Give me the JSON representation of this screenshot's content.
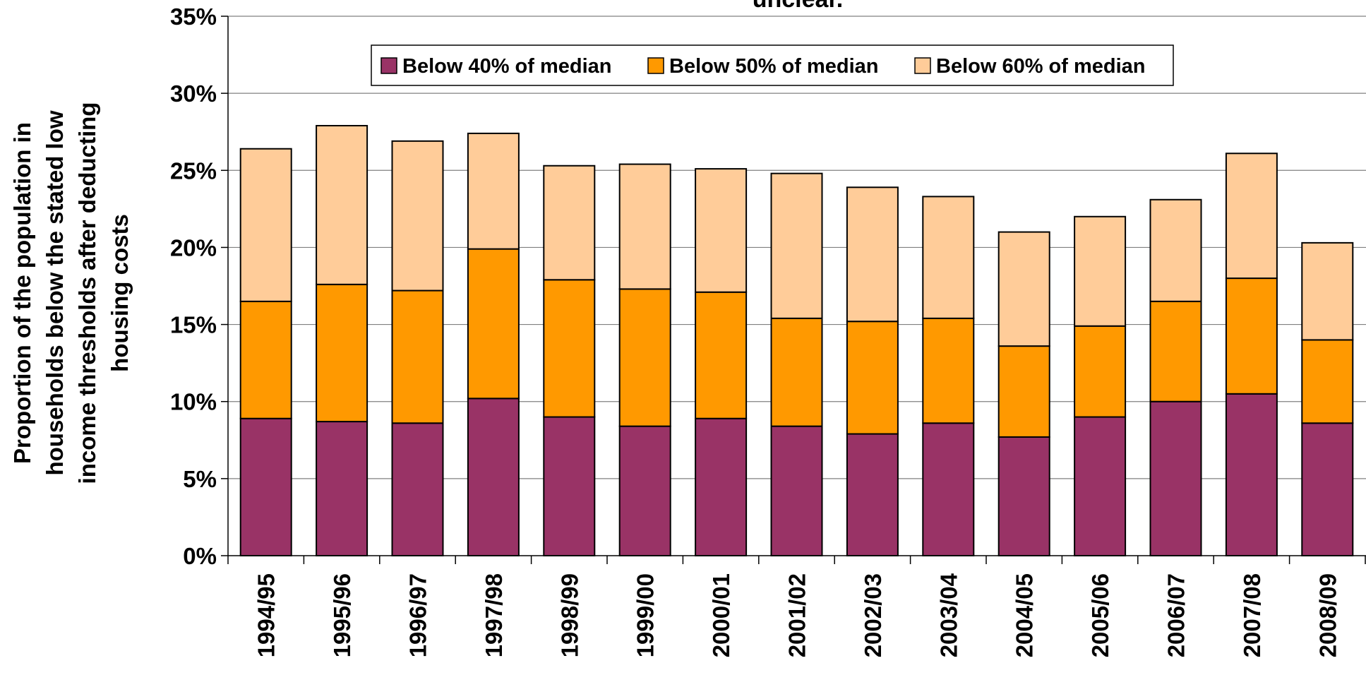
{
  "chart_data": {
    "type": "bar",
    "stacked": true,
    "title": "unclear.",
    "ylabel_lines": [
      "Proportion of the population in",
      "households below the stated low",
      "income thresholds after deducting",
      "housing costs"
    ],
    "xlabel": "",
    "ylim": [
      0,
      35
    ],
    "yticks": [
      "0%",
      "5%",
      "10%",
      "15%",
      "20%",
      "25%",
      "30%",
      "35%"
    ],
    "grid": true,
    "legend_position": "top",
    "categories": [
      "1994/95",
      "1995/96",
      "1996/97",
      "1997/98",
      "1998/99",
      "1999/00",
      "2000/01",
      "2001/02",
      "2002/03",
      "2003/04",
      "2004/05",
      "2005/06",
      "2006/07",
      "2007/08",
      "2008/09"
    ],
    "series": [
      {
        "name": "Below 40% of median",
        "color": "#993366",
        "values": [
          8.9,
          8.7,
          8.6,
          10.2,
          9.0,
          8.4,
          8.9,
          8.4,
          7.9,
          8.6,
          7.7,
          9.0,
          10.0,
          10.5,
          8.6
        ]
      },
      {
        "name": "Below 50% of median",
        "color": "#FF9900",
        "values": [
          7.6,
          8.9,
          8.6,
          9.7,
          8.9,
          8.9,
          8.2,
          7.0,
          7.3,
          6.8,
          5.9,
          5.9,
          6.5,
          7.5,
          5.4
        ]
      },
      {
        "name": "Below 60% of median",
        "color": "#FFCC99",
        "values": [
          9.9,
          10.3,
          9.7,
          7.5,
          7.4,
          8.1,
          8.0,
          9.4,
          8.7,
          7.9,
          7.4,
          7.1,
          6.6,
          8.1,
          6.3
        ]
      }
    ]
  }
}
